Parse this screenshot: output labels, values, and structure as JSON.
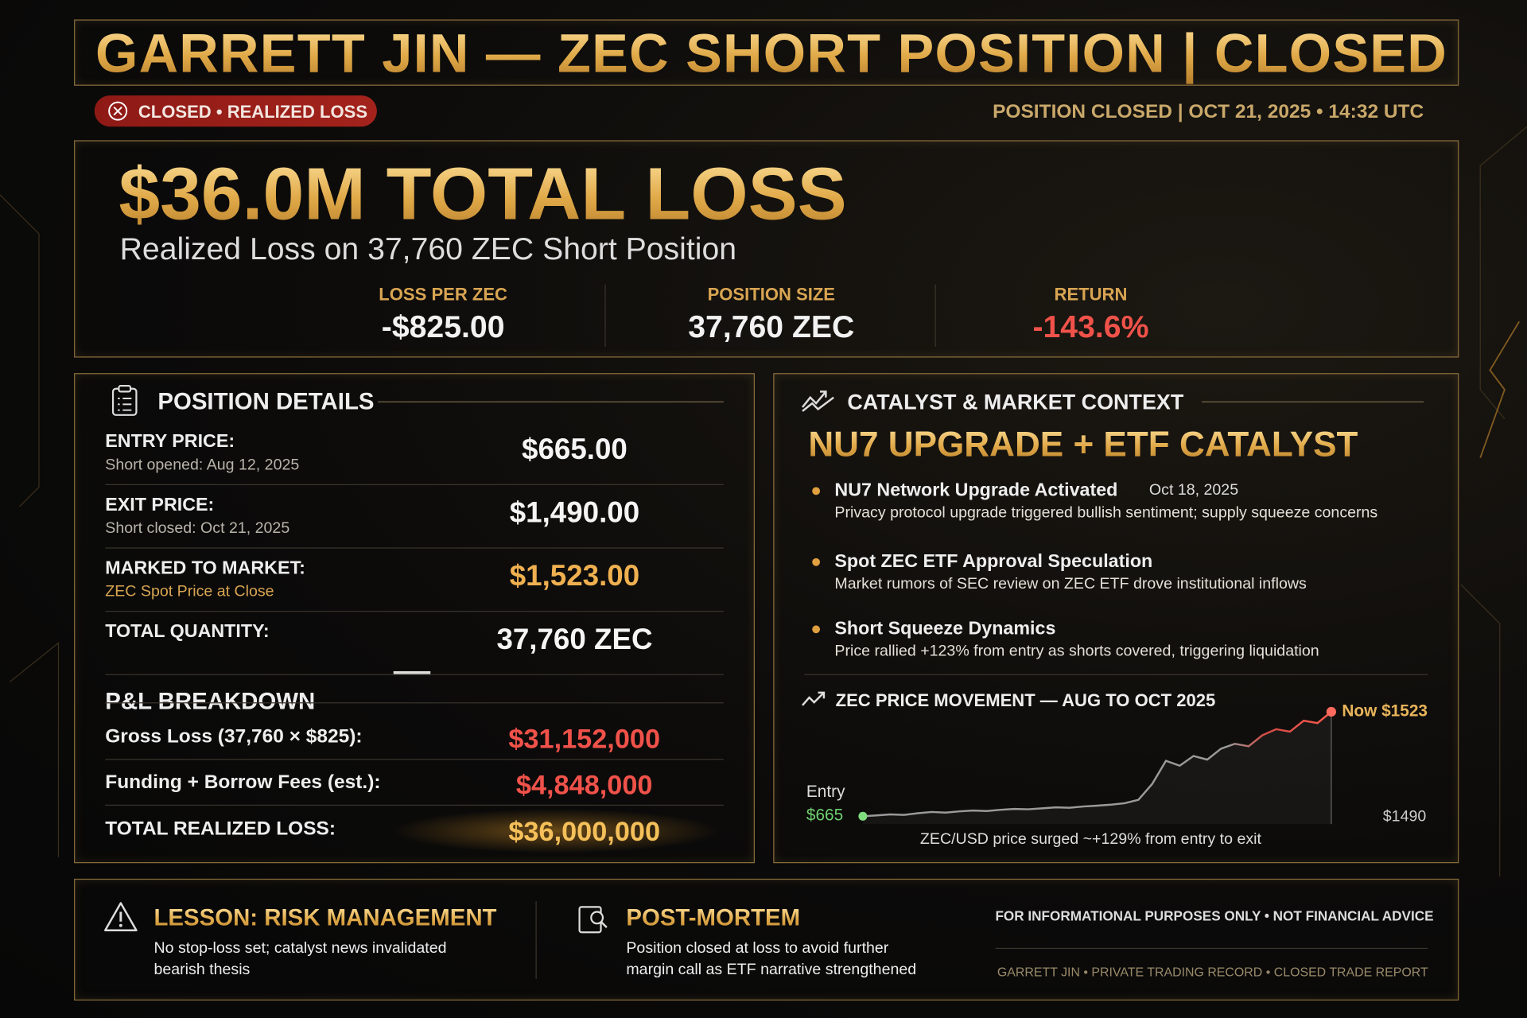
{
  "header": {
    "title": "GARRETT JIN — ZEC SHORT POSITION | CLOSED",
    "status_badge": "CLOSED • REALIZED LOSS",
    "closed_at": "POSITION CLOSED | OCT 21, 2025 • 14:32 UTC"
  },
  "summary": {
    "headline": "$36.0M TOTAL LOSS",
    "subtitle": "Realized Loss on 37,760 ZEC Short Position",
    "stats": [
      {
        "label": "LOSS PER ZEC",
        "value": "-$825.00"
      },
      {
        "label": "POSITION SIZE",
        "value": "37,760 ZEC"
      },
      {
        "label": "RETURN",
        "value": "-143.6%"
      }
    ]
  },
  "position_details": {
    "title": "POSITION DETAILS",
    "rows": [
      {
        "label": "ENTRY PRICE:",
        "sublabel": "Short opened: Aug 12, 2025",
        "value": "$665.00"
      },
      {
        "label": "EXIT PRICE:",
        "sublabel": "Short closed: Oct 21, 2025",
        "value": "$1,490.00"
      },
      {
        "label": "MARKED TO MARKET:",
        "sublabel": "ZEC Spot Price at Close",
        "value": "$1,523.00"
      },
      {
        "label": "TOTAL QUANTITY:",
        "value": "37,760 ZEC"
      }
    ],
    "pnl": {
      "title": "P&L BREAKDOWN",
      "rows": [
        {
          "label": "Gross Loss (37,760 × $825):",
          "value": "$31,152,000"
        },
        {
          "label": "Funding + Borrow Fees (est.):",
          "value": "$4,848,000"
        },
        {
          "label": "TOTAL REALIZED LOSS:",
          "value": "$36,000,000"
        }
      ]
    }
  },
  "catalyst": {
    "title": "CATALYST & MARKET CONTEXT",
    "headline": "NU7 UPGRADE + ETF CATALYST",
    "items": [
      {
        "title": "NU7 Network Upgrade Activated",
        "date": "Oct 18, 2025",
        "text": "Privacy protocol upgrade triggered bullish sentiment; supply squeeze concerns"
      },
      {
        "title": "Spot ZEC ETF Approval Speculation",
        "text": "Market rumors of SEC review on ZEC ETF drove institutional inflows"
      },
      {
        "title": "Short Squeeze Dynamics",
        "text": "Price rallied +123% from entry as shorts covered, triggering liquidation"
      }
    ],
    "chart": {
      "type": "line",
      "title": "ZEC PRICE MOVEMENT — AUG TO OCT 2025",
      "values": [
        665,
        672,
        680,
        676,
        690,
        700,
        695,
        705,
        712,
        708,
        718,
        725,
        722,
        730,
        738,
        735,
        745,
        752,
        760,
        772,
        800,
        930,
        1120,
        1080,
        1160,
        1130,
        1220,
        1260,
        1240,
        1330,
        1380,
        1360,
        1450,
        1430,
        1523
      ],
      "ylim": [
        600,
        1600
      ],
      "entry_label": "Entry",
      "entry_value": "$665",
      "now_label": "Now $1523",
      "exit_label": "$1490",
      "caption": "ZEC/USD price surged ~+129% from entry to exit"
    }
  },
  "footer": {
    "lesson": {
      "title": "LESSON: RISK MANAGEMENT",
      "text": "No stop-loss set; catalyst news invalidated bearish thesis"
    },
    "postmortem": {
      "title": "POST-MORTEM",
      "text": "Position closed at loss to avoid further margin call as ETF narrative strengthened"
    },
    "disclaimer": "FOR INFORMATIONAL PURPOSES ONLY • NOT FINANCIAL ADVICE",
    "credit": "GARRETT JIN • PRIVATE TRADING RECORD • CLOSED TRADE REPORT"
  }
}
